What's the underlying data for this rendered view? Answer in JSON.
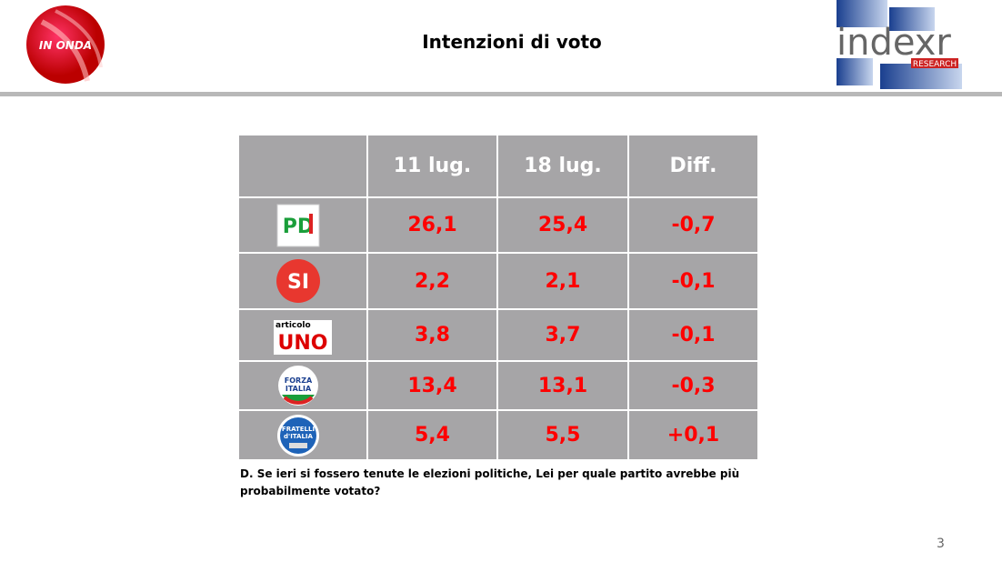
{
  "header": {
    "title": "Intenzioni di voto",
    "left_logo": "IN ONDA",
    "right_logo": "indexr",
    "right_logo_sub": "RESEARCH"
  },
  "table": {
    "columns": [
      "11 lug.",
      "18 lug.",
      "Diff."
    ],
    "rows": [
      {
        "party": [
          "PD"
        ],
        "values": [
          "26,1",
          "25,4",
          "-0,7"
        ]
      },
      {
        "party": [
          "SI"
        ],
        "values": [
          "2,2",
          "2,1",
          "-0,1"
        ]
      },
      {
        "party": [
          "articolo",
          "UNO"
        ],
        "values": [
          "3,8",
          "3,7",
          "-0,1"
        ]
      },
      {
        "party": [
          "FORZA",
          "ITALIA"
        ],
        "values": [
          "13,4",
          "13,1",
          "-0,3"
        ]
      },
      {
        "party": [
          "FRATELLI",
          "d'ITALIA"
        ],
        "values": [
          "5,4",
          "5,5",
          "+0,1"
        ]
      }
    ]
  },
  "footnote": [
    "D. Se ieri si fossero tenute le elezioni politiche, Lei per quale partito avrebbe più",
    "probabilmente votato?"
  ],
  "page_number": "3"
}
